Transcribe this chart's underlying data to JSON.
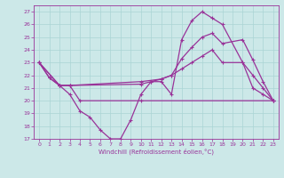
{
  "xlabel": "Windchill (Refroidissement éolien,°C)",
  "xlim": [
    -0.5,
    23.5
  ],
  "ylim": [
    17,
    27.5
  ],
  "xticks": [
    0,
    1,
    2,
    3,
    4,
    5,
    6,
    7,
    8,
    9,
    10,
    11,
    12,
    13,
    14,
    15,
    16,
    17,
    18,
    19,
    20,
    21,
    22,
    23
  ],
  "yticks": [
    17,
    18,
    19,
    20,
    21,
    22,
    23,
    24,
    25,
    26,
    27
  ],
  "background_color": "#cce8e8",
  "grid_color": "#aad4d4",
  "line_color": "#993399",
  "line1_x": [
    0,
    1,
    2,
    3,
    4,
    10,
    23
  ],
  "line1_y": [
    23,
    21.8,
    21.2,
    21.2,
    20.0,
    20.0,
    20.0
  ],
  "line2_x": [
    0,
    1,
    2,
    3,
    4,
    5,
    6,
    7,
    8,
    9,
    10,
    11,
    12,
    13,
    14,
    15,
    16,
    17,
    18,
    20,
    21,
    22,
    23
  ],
  "line2_y": [
    23,
    21.8,
    21.2,
    20.5,
    19.2,
    18.7,
    17.7,
    17.0,
    17.0,
    18.5,
    20.5,
    21.5,
    21.5,
    20.5,
    24.8,
    26.3,
    27.0,
    26.5,
    26.0,
    23.0,
    21.0,
    20.5,
    20.0
  ],
  "line3_x": [
    0,
    2,
    3,
    10,
    12,
    13,
    14,
    15,
    16,
    17,
    18,
    20,
    21,
    22,
    23
  ],
  "line3_y": [
    23,
    21.2,
    21.2,
    21.5,
    21.7,
    22.0,
    23.3,
    24.2,
    25.0,
    25.3,
    24.5,
    24.8,
    23.2,
    21.5,
    20.0
  ],
  "line4_x": [
    0,
    2,
    3,
    10,
    11,
    12,
    13,
    14,
    15,
    16,
    17,
    18,
    20,
    21,
    22,
    23
  ],
  "line4_y": [
    23,
    21.2,
    21.2,
    21.3,
    21.5,
    21.7,
    22.0,
    22.5,
    23.0,
    23.5,
    24.0,
    23.0,
    23.0,
    22.0,
    21.0,
    20.0
  ]
}
